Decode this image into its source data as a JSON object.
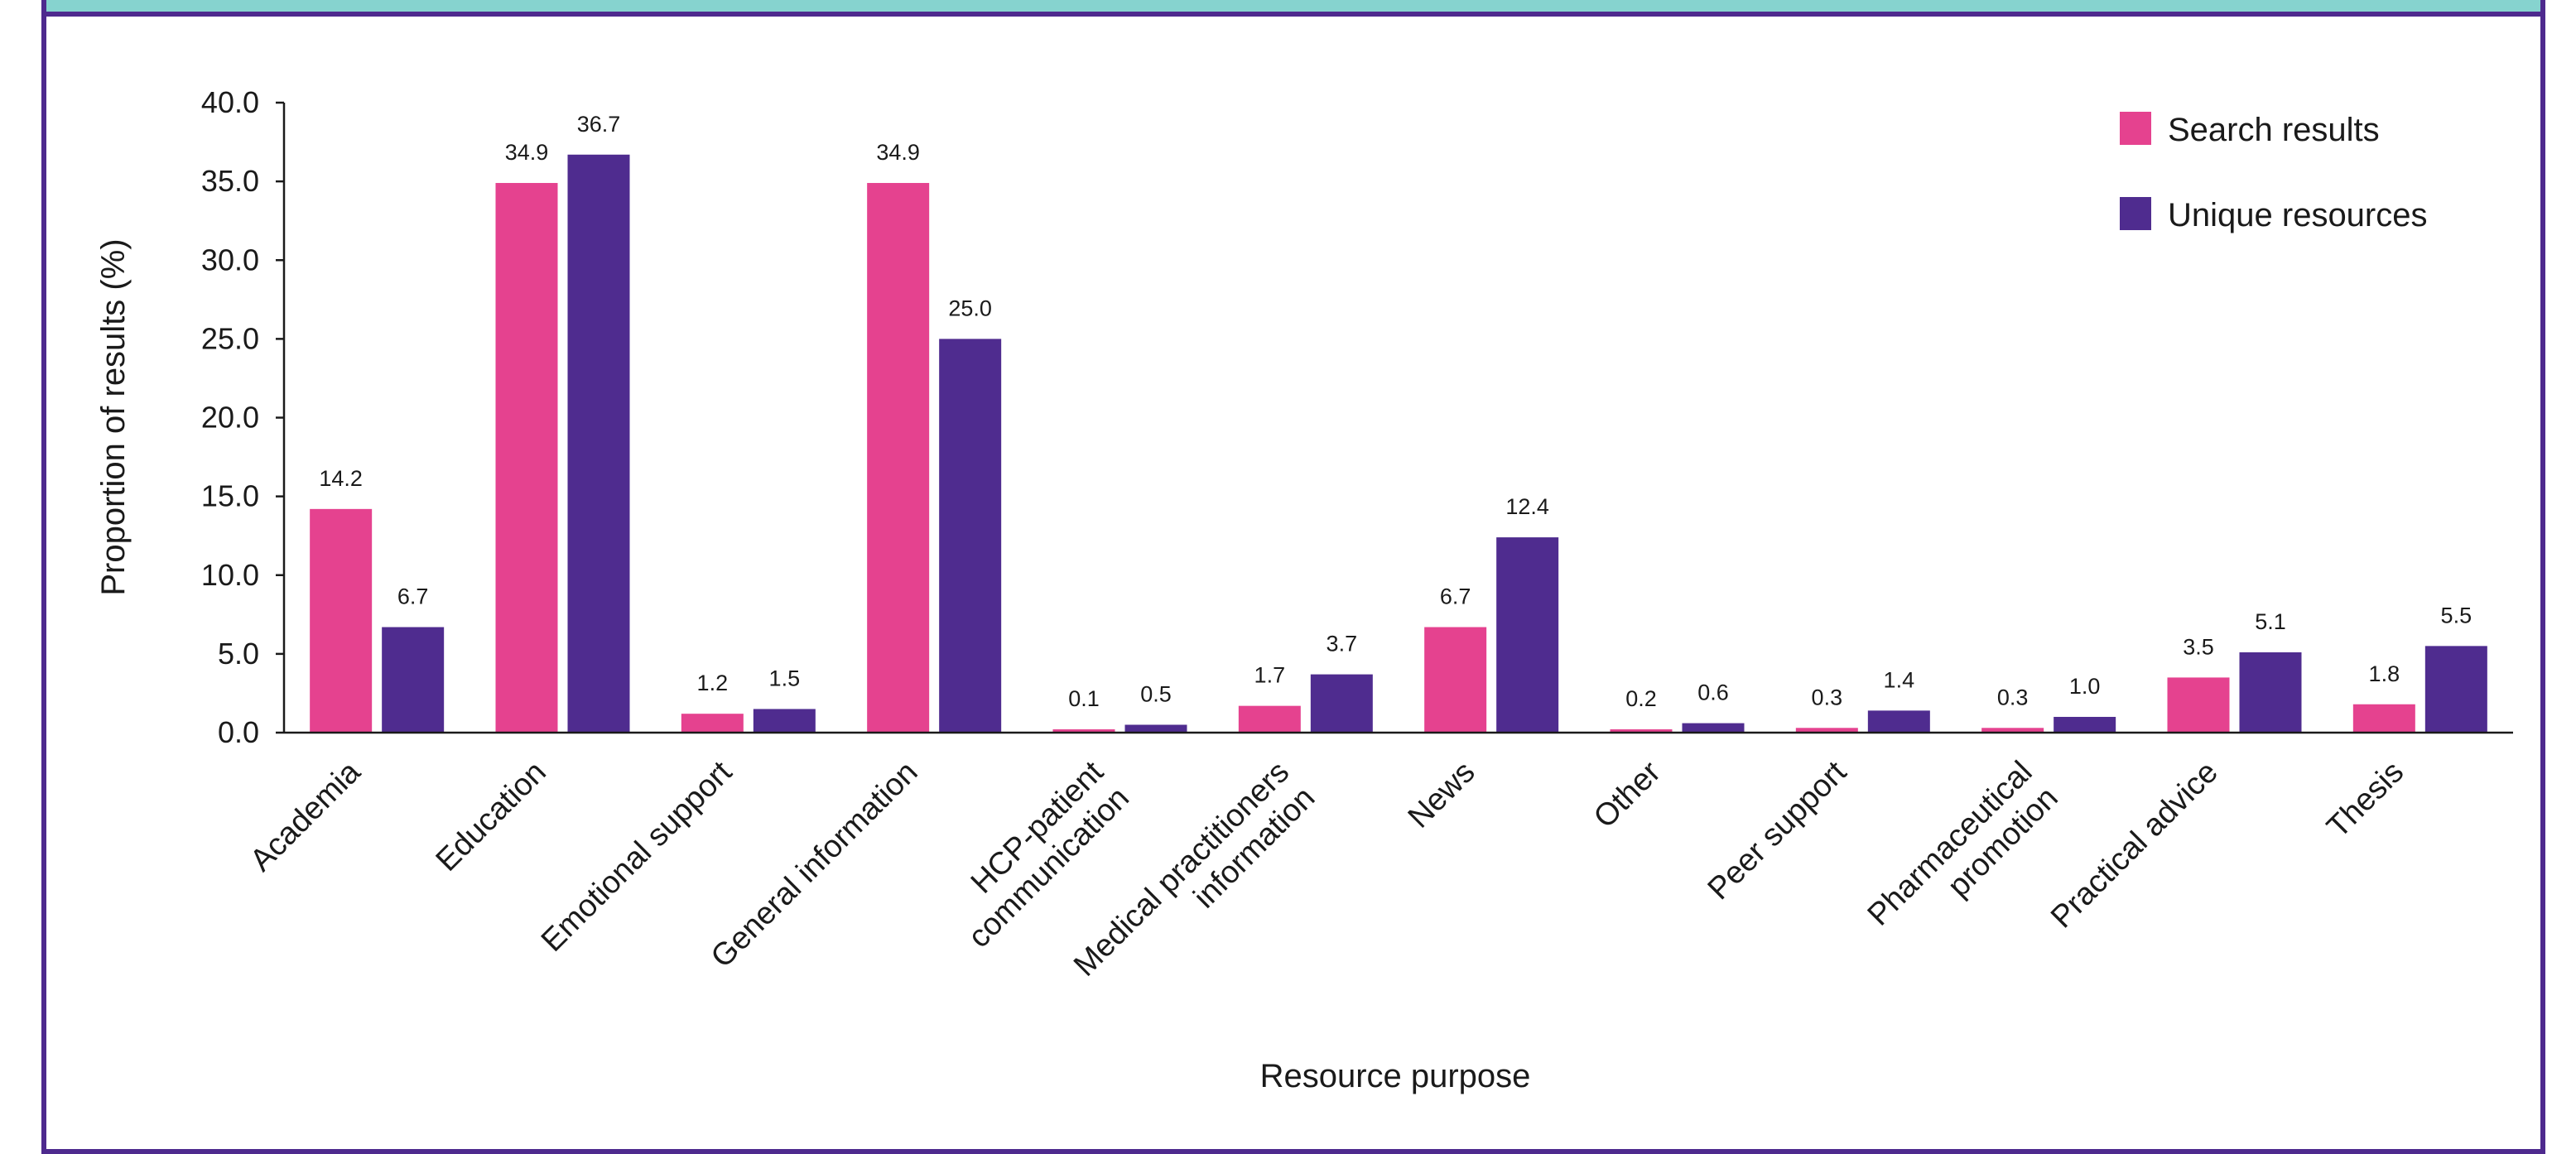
{
  "chart_data": {
    "type": "bar",
    "xlabel": "Resource purpose",
    "ylabel": "Proportion of results (%)",
    "ylim": [
      0,
      40
    ],
    "yticks": [
      "0.0",
      "5.0",
      "10.0",
      "15.0",
      "20.0",
      "25.0",
      "30.0",
      "35.0",
      "40.0"
    ],
    "legend_position": "top-right",
    "grid": false,
    "categories": [
      [
        "Academia"
      ],
      [
        "Education"
      ],
      [
        "Emotional support"
      ],
      [
        "General information"
      ],
      [
        "HCP-patient",
        "communication"
      ],
      [
        "Medical practitioners",
        "information"
      ],
      [
        "News"
      ],
      [
        "Other"
      ],
      [
        "Peer support"
      ],
      [
        "Pharmaceutical",
        "promotion"
      ],
      [
        "Practical advice"
      ],
      [
        "Thesis"
      ]
    ],
    "series": [
      {
        "name": "Search results",
        "color": "#e5428f",
        "values": [
          14.2,
          34.9,
          1.2,
          34.9,
          0.1,
          1.7,
          6.7,
          0.2,
          0.3,
          0.3,
          3.5,
          1.8
        ],
        "labels": [
          "14.2",
          "34.9",
          "1.2",
          "34.9",
          "0.1",
          "1.7",
          "6.7",
          "0.2",
          "0.3",
          "0.3",
          "3.5",
          "1.8"
        ]
      },
      {
        "name": "Unique resources",
        "color": "#4f2c8f",
        "values": [
          6.7,
          36.7,
          1.5,
          25.0,
          0.5,
          3.7,
          12.4,
          0.6,
          1.4,
          1.0,
          5.1,
          5.5
        ],
        "labels": [
          "6.7",
          "36.7",
          "1.5",
          "25.0",
          "0.5",
          "3.7",
          "12.4",
          "0.6",
          "1.4",
          "1.0",
          "5.1",
          "5.5"
        ]
      }
    ]
  }
}
